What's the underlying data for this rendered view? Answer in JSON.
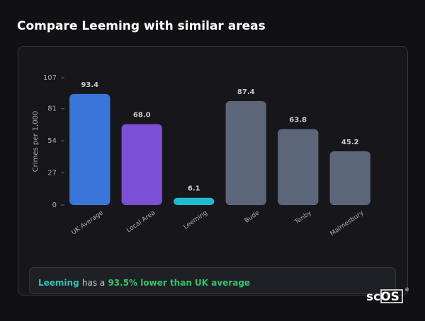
{
  "chart_data": {
    "type": "bar",
    "title": "Compare Leeming with similar areas",
    "y_label": "Crimes per 1,000",
    "categories": [
      "UK Average",
      "Local Area",
      "Leeming",
      "Bude",
      "Tenby",
      "Malmesbury"
    ],
    "values": [
      93.4,
      68,
      6.1,
      87.4,
      63.8,
      45.2
    ],
    "value_labels": [
      "93.4",
      "68.0",
      "6.1",
      "87.4",
      "63.8",
      "45.2"
    ],
    "colors": [
      "#3a76d9",
      "#7b4fd6",
      "#22b8cf",
      "#5b6678",
      "#5b6678",
      "#5b6678"
    ],
    "ylim": [
      0,
      107
    ],
    "yticks": [
      0,
      27,
      54,
      81,
      107
    ],
    "grid": false
  },
  "summary": {
    "area": "Leeming",
    "middle": "has a",
    "comparison": "93.5% lower than UK average"
  },
  "logo": {
    "text": "scOS",
    "mark": "®"
  }
}
